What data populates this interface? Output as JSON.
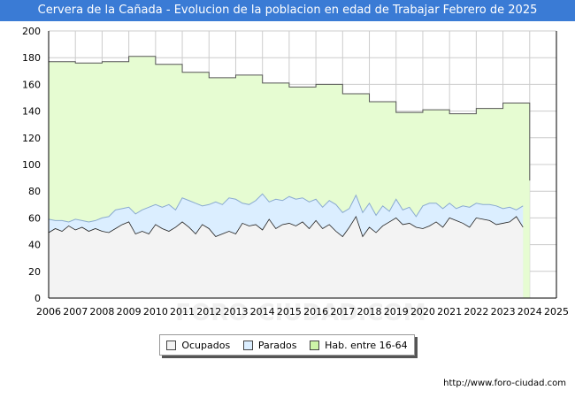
{
  "title": "Cervera de la Cañada - Evolucion de la poblacion en edad de Trabajar Febrero de 2025",
  "watermark": "FORO-CIUDAD.COM",
  "footer": {
    "url": "http://www.foro-ciudad.com"
  },
  "colors": {
    "title_bg": "#3a7bd5",
    "hab_fill": "#e6fcd2",
    "hab_line": "#555555",
    "parados_fill": "#dbeeff",
    "parados_line": "#8aaad0",
    "ocupados_fill": "#f3f3f3",
    "ocupados_line": "#222222",
    "grid": "#cccccc"
  },
  "legend": [
    {
      "label": "Ocupados",
      "color": "#f3f3f3"
    },
    {
      "label": "Parados",
      "color": "#dbeeff"
    },
    {
      "label": "Hab. entre 16-64",
      "color": "#cdf5a8"
    }
  ],
  "chart_data": {
    "type": "area",
    "title": "Cervera de la Cañada - Evolucion de la poblacion en edad de Trabajar Febrero de 2025",
    "xlabel": "",
    "ylabel": "",
    "xlim": [
      2006,
      2025
    ],
    "ylim": [
      0,
      200
    ],
    "x_ticks": [
      "2006",
      "2007",
      "2008",
      "2009",
      "2010",
      "2011",
      "2012",
      "2013",
      "2014",
      "2015",
      "2016",
      "2017",
      "2018",
      "2019",
      "2020",
      "2021",
      "2022",
      "2023",
      "2024",
      "2025"
    ],
    "y_ticks": [
      0,
      20,
      40,
      60,
      80,
      100,
      120,
      140,
      160,
      180,
      200
    ],
    "grid": true,
    "series": [
      {
        "name": "Hab. entre 16-64",
        "years": [
          2006,
          2007,
          2008,
          2009,
          2010,
          2011,
          2012,
          2013,
          2014,
          2015,
          2016,
          2017,
          2018,
          2019,
          2020,
          2021,
          2022,
          2023
        ],
        "values": [
          177,
          176,
          177,
          181,
          175,
          169,
          165,
          167,
          161,
          158,
          160,
          153,
          147,
          139,
          141,
          138,
          142,
          146
        ],
        "end": 2024,
        "end_value": 88
      },
      {
        "name": "Parados",
        "start": 2006,
        "step": 0.25,
        "values": [
          59,
          58,
          58,
          57,
          59,
          58,
          57,
          58,
          60,
          61,
          66,
          67,
          68,
          63,
          66,
          68,
          70,
          68,
          70,
          66,
          75,
          73,
          71,
          69,
          70,
          72,
          70,
          75,
          74,
          71,
          70,
          73,
          78,
          72,
          74,
          73,
          76,
          74,
          75,
          72,
          74,
          68,
          73,
          70,
          64,
          67,
          77,
          64,
          71,
          62,
          69,
          65,
          74,
          66,
          68,
          61,
          69,
          71,
          71,
          67,
          71,
          67,
          69,
          68,
          71,
          70,
          70,
          69,
          67,
          68,
          66,
          69
        ]
      },
      {
        "name": "Ocupados",
        "start": 2006,
        "step": 0.25,
        "values": [
          49,
          52,
          50,
          54,
          51,
          53,
          50,
          52,
          50,
          49,
          52,
          55,
          57,
          48,
          50,
          48,
          55,
          52,
          50,
          53,
          57,
          53,
          48,
          55,
          52,
          46,
          48,
          50,
          48,
          56,
          54,
          55,
          51,
          59,
          52,
          55,
          56,
          54,
          57,
          52,
          58,
          52,
          55,
          50,
          46,
          53,
          61,
          46,
          53,
          49,
          54,
          57,
          60,
          55,
          56,
          53,
          52,
          54,
          57,
          53,
          60,
          58,
          56,
          53,
          60,
          59,
          58,
          55,
          56,
          57,
          61,
          53
        ]
      }
    ]
  }
}
